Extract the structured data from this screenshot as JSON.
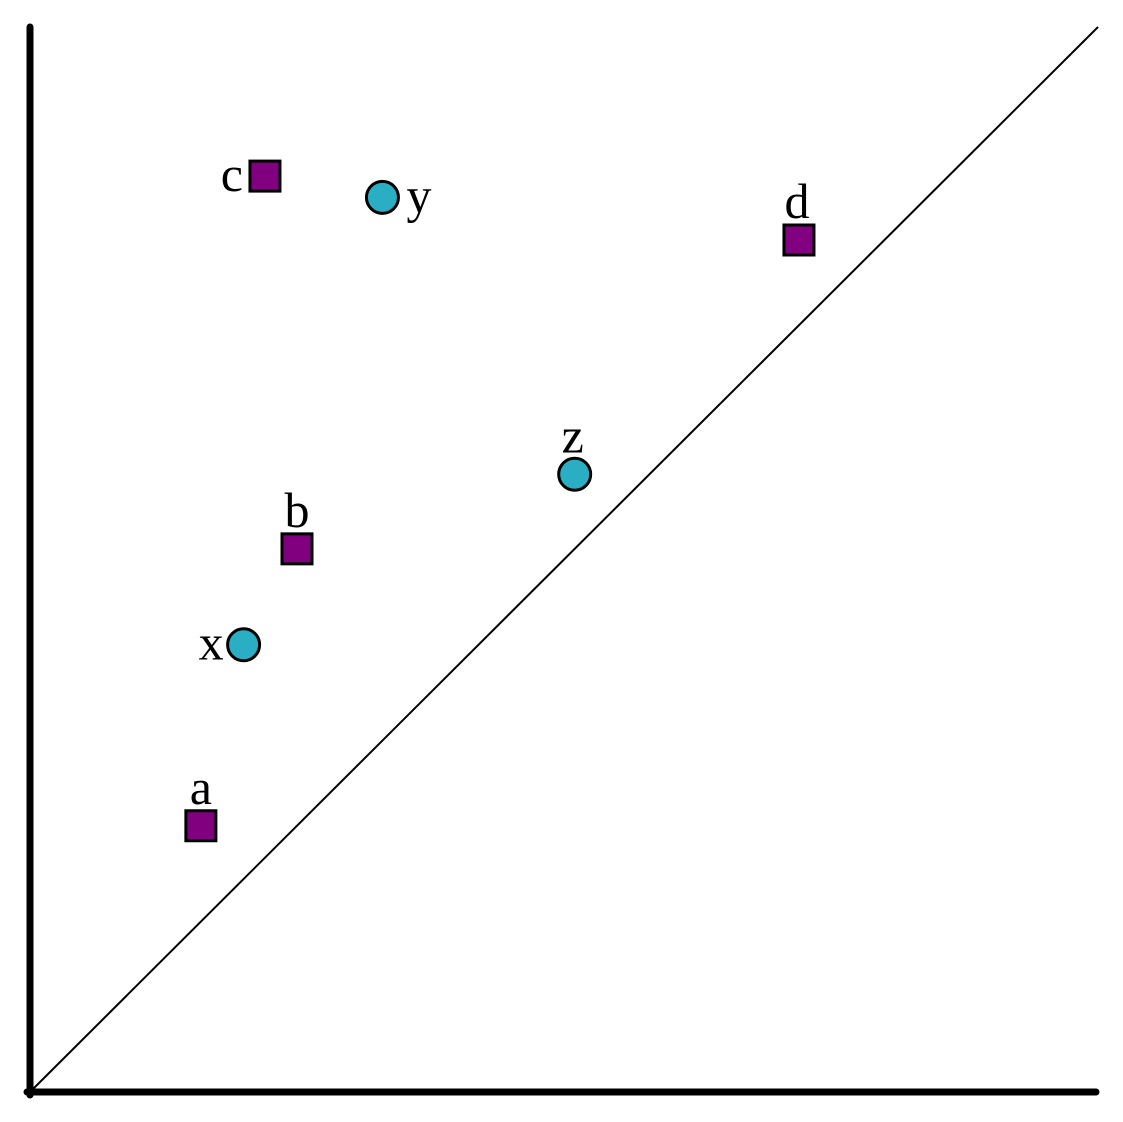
{
  "chart_data": {
    "type": "scatter",
    "title": "",
    "xlabel": "",
    "ylabel": "",
    "xlim": [
      0,
      1
    ],
    "ylim": [
      0,
      1
    ],
    "grid": false,
    "legend": "none",
    "diagonal_reference_line": true,
    "colors": {
      "square_fill": "#800080",
      "circle_fill": "#2aaec4",
      "outline": "#000000"
    },
    "series": [
      {
        "marker": "square",
        "color": "#800080",
        "points": [
          {
            "label": "a",
            "x": 0.16,
            "y": 0.25
          },
          {
            "label": "b",
            "x": 0.25,
            "y": 0.51
          },
          {
            "label": "c",
            "x": 0.22,
            "y": 0.86
          },
          {
            "label": "d",
            "x": 0.72,
            "y": 0.8
          }
        ]
      },
      {
        "marker": "circle",
        "color": "#2aaec4",
        "points": [
          {
            "label": "x",
            "x": 0.2,
            "y": 0.42
          },
          {
            "label": "y",
            "x": 0.33,
            "y": 0.84
          },
          {
            "label": "z",
            "x": 0.51,
            "y": 0.58
          }
        ]
      }
    ]
  }
}
